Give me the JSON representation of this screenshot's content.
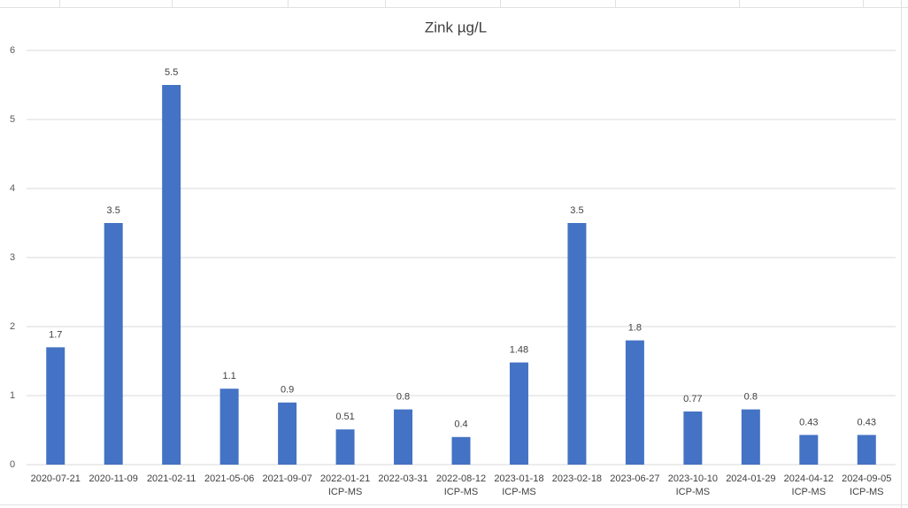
{
  "chart_data": {
    "type": "bar",
    "title": "Zink µg/L",
    "categories": [
      [
        "2020-07-21"
      ],
      [
        "2020-11-09"
      ],
      [
        "2021-02-11"
      ],
      [
        "2021-05-06"
      ],
      [
        "2021-09-07"
      ],
      [
        "2022-01-21",
        "ICP-MS"
      ],
      [
        "2022-03-31"
      ],
      [
        "2022-08-12",
        "ICP-MS"
      ],
      [
        "2023-01-18",
        "ICP-MS"
      ],
      [
        "2023-02-18"
      ],
      [
        "2023-06-27"
      ],
      [
        "2023-10-10",
        "ICP-MS"
      ],
      [
        "2024-01-29"
      ],
      [
        "2024-04-12",
        "ICP-MS"
      ],
      [
        "2024-09-05",
        "ICP-MS"
      ]
    ],
    "values": [
      1.7,
      3.5,
      5.5,
      1.1,
      0.9,
      0.51,
      0.8,
      0.4,
      1.48,
      3.5,
      1.8,
      0.77,
      0.8,
      0.43,
      0.43
    ],
    "color": "#4472c4",
    "ylim": [
      0,
      6
    ],
    "yticks": [
      0,
      1,
      2,
      3,
      4,
      5,
      6
    ],
    "grid": true
  }
}
